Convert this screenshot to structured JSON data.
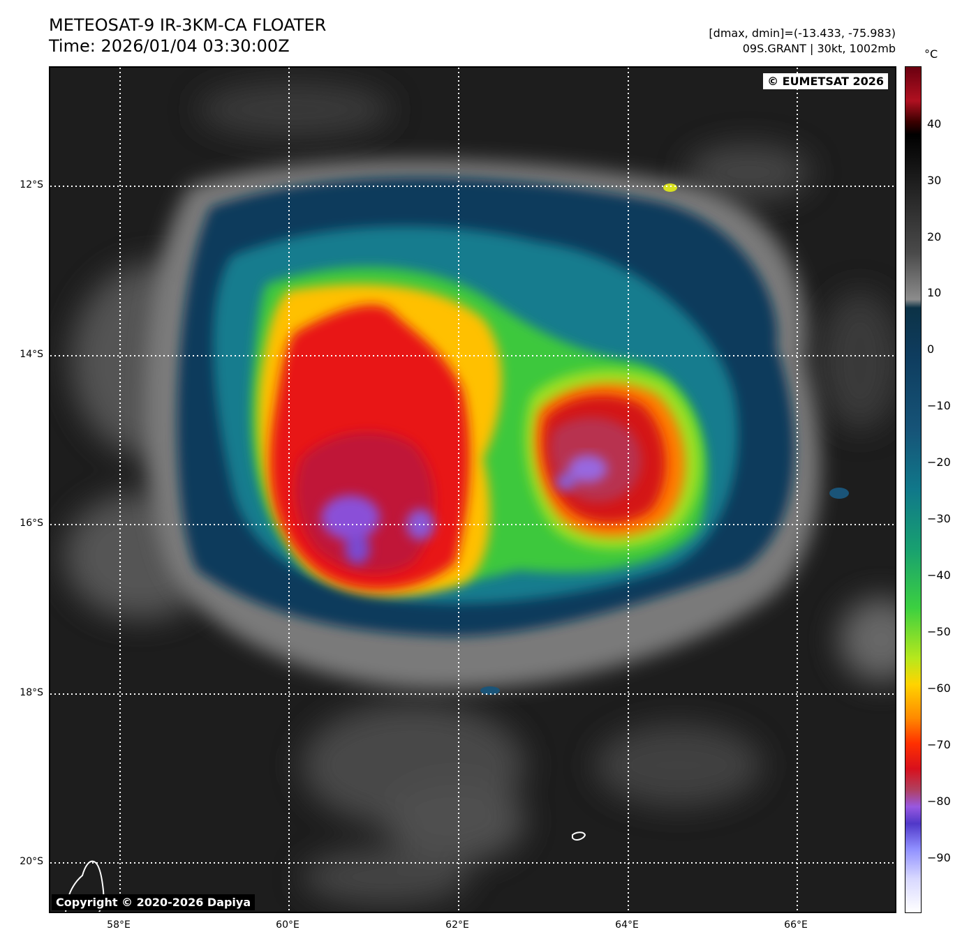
{
  "header": {
    "title_line1": "METEOSAT-9 IR-3KM-CA FLOATER",
    "title_line2": "Time: 2026/01/04 03:30:00Z",
    "dmax_dmin": "[dmax, dmin]=(-13.433, -75.983)",
    "storm_info": "09S.GRANT | 30kt, 1002mb"
  },
  "map": {
    "credit_eumetsat": "© EUMETSAT 2026",
    "credit_dapiya": "Copyright © 2020-2026 Dapiya",
    "lat_labels": [
      "12°S",
      "14°S",
      "16°S",
      "18°S",
      "20°S"
    ],
    "lon_labels": [
      "58°E",
      "60°E",
      "62°E",
      "64°E",
      "66°E"
    ]
  },
  "colorbar": {
    "unit": "°C",
    "ticks": [
      "40",
      "30",
      "20",
      "10",
      "0",
      "−10",
      "−20",
      "−30",
      "−40",
      "−50",
      "−60",
      "−70",
      "−80",
      "−90"
    ]
  }
}
